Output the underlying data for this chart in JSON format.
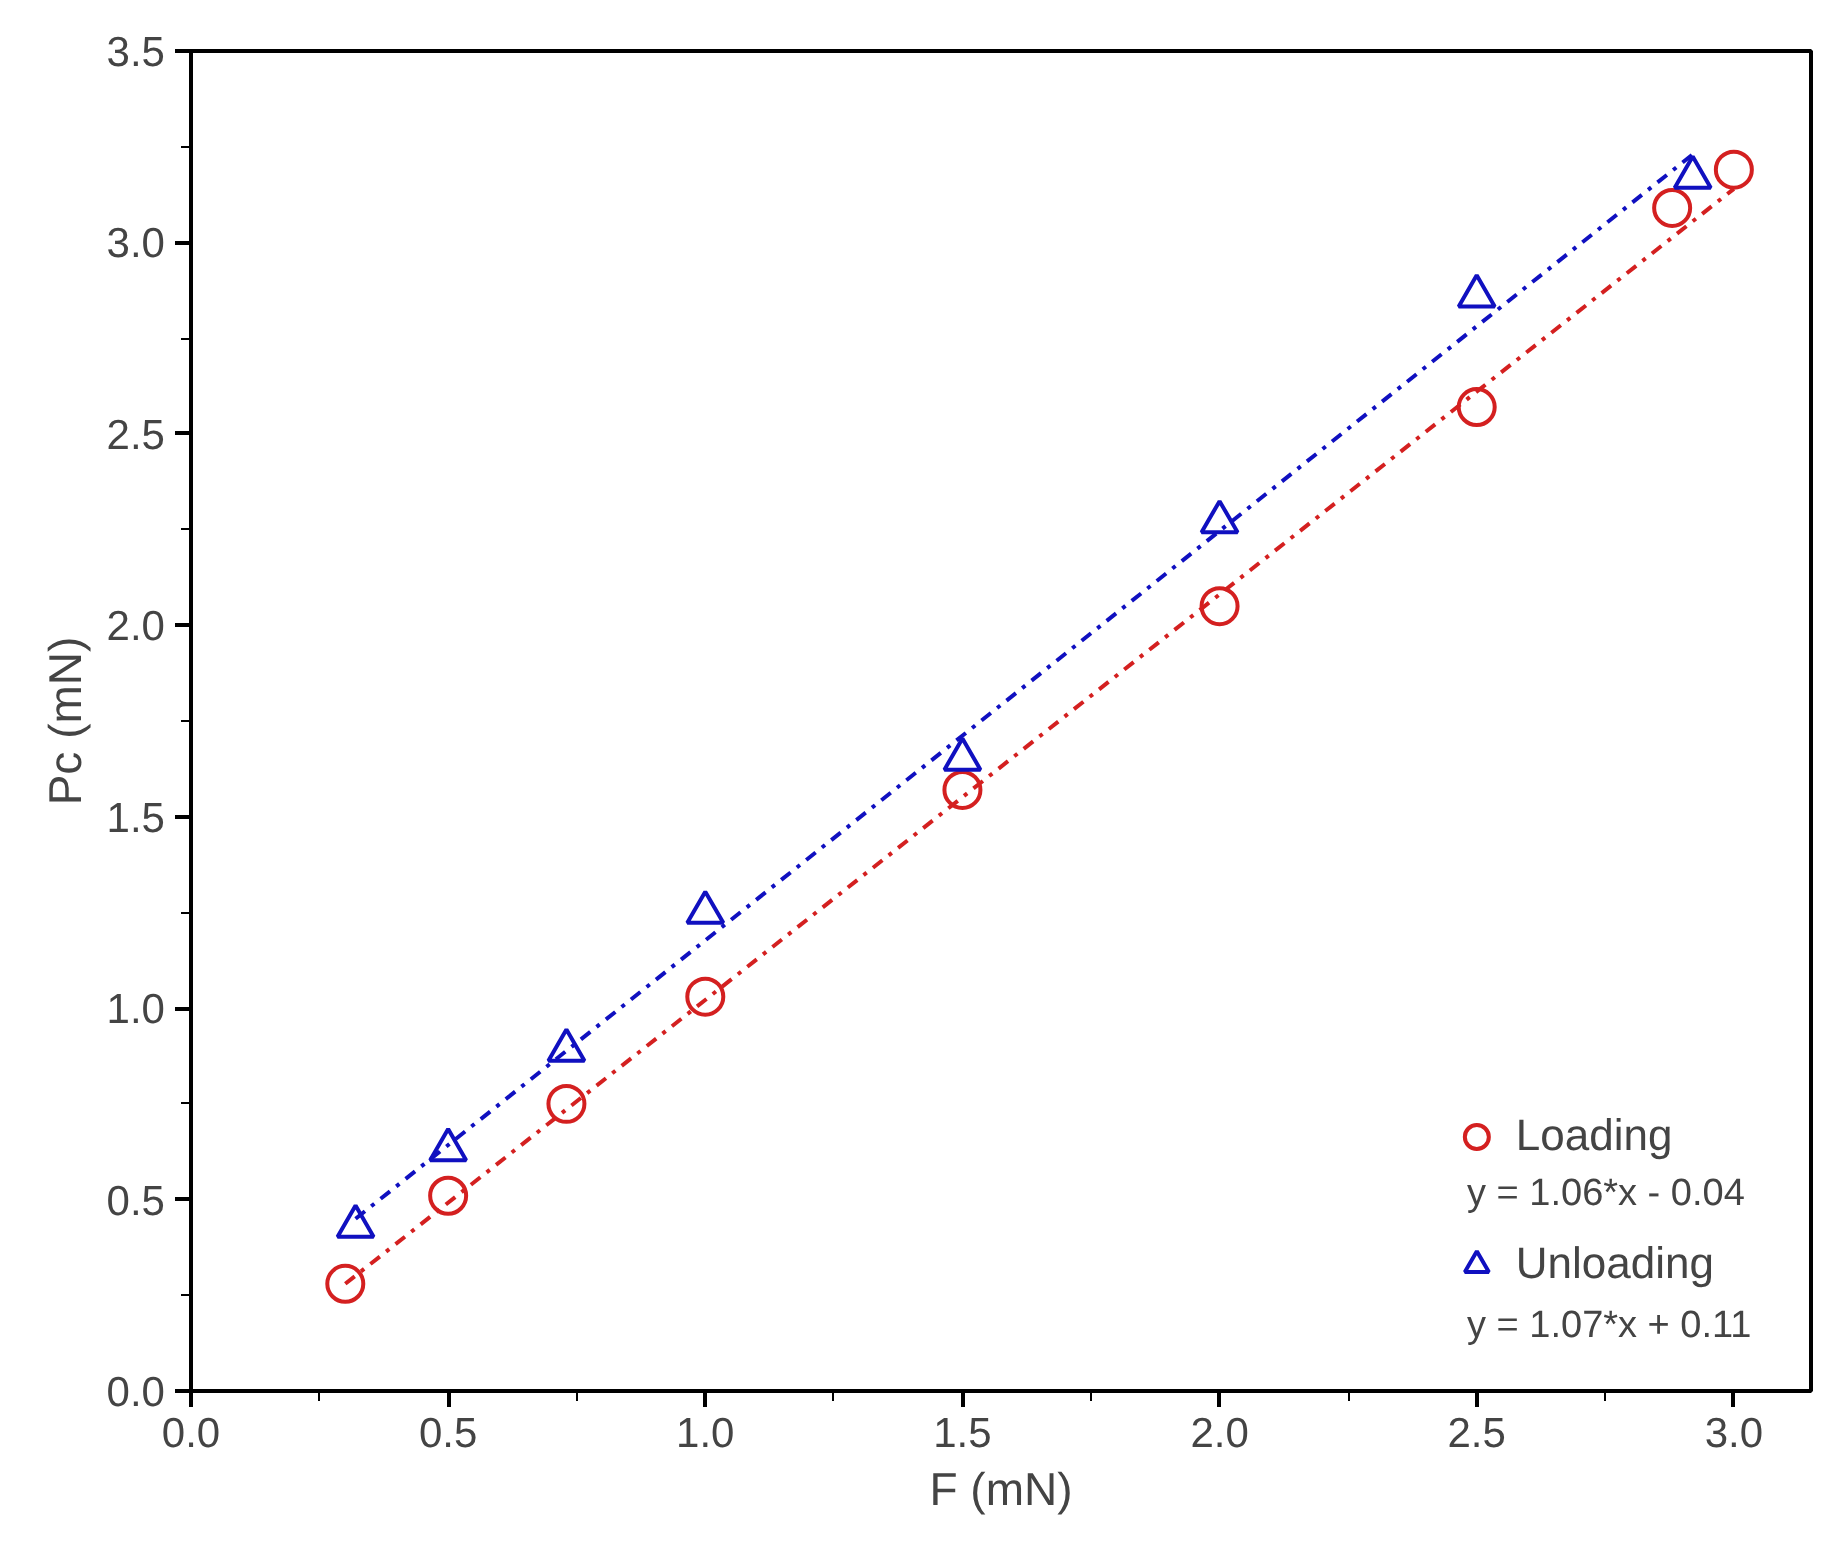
{
  "chart_data": {
    "type": "scatter",
    "xlabel": "F (mN)",
    "ylabel": "Pc (mN)",
    "xlim": [
      0,
      3.15
    ],
    "ylim": [
      0,
      3.5
    ],
    "xticks": [
      {
        "value": 0,
        "label": "0.0"
      },
      {
        "value": 0.5,
        "label": "0.5"
      },
      {
        "value": 1,
        "label": "1.0"
      },
      {
        "value": 1.5,
        "label": "1.5"
      },
      {
        "value": 2,
        "label": "2.0"
      },
      {
        "value": 2.5,
        "label": "2.5"
      },
      {
        "value": 3,
        "label": "3.0"
      }
    ],
    "yticks": [
      {
        "value": 0,
        "label": "0.0"
      },
      {
        "value": 0.5,
        "label": "0.5"
      },
      {
        "value": 1,
        "label": "1.0"
      },
      {
        "value": 1.5,
        "label": "1.5"
      },
      {
        "value": 2,
        "label": "2.0"
      },
      {
        "value": 2.5,
        "label": "2.5"
      },
      {
        "value": 3,
        "label": "3.0"
      },
      {
        "value": 3.5,
        "label": "3.5"
      }
    ],
    "grid": false,
    "legend": "bottom right",
    "series": [
      {
        "type": "line",
        "line_style": "dashdot",
        "color": "#d42020",
        "x": [
          0.3,
          3.0
        ],
        "values": [
          0.28,
          3.14
        ]
      },
      {
        "type": "line",
        "line_style": "dashdot",
        "color": "#1010c0",
        "x": [
          0.32,
          2.92
        ],
        "values": [
          0.45,
          3.23
        ]
      },
      {
        "name": "Loading",
        "marker": "circle",
        "color": "#d42020",
        "x": [
          0.3,
          0.5,
          0.73,
          1.0,
          1.5,
          2.0,
          2.5,
          2.88,
          3.0
        ],
        "values": [
          0.28,
          0.51,
          0.75,
          1.03,
          1.57,
          2.05,
          2.57,
          3.09,
          3.19
        ]
      },
      {
        "name": "Unloading",
        "marker": "triangle",
        "color": "#1010c0",
        "x": [
          0.32,
          0.5,
          0.73,
          1.0,
          1.5,
          2.0,
          2.5,
          2.92
        ],
        "values": [
          0.43,
          0.63,
          0.89,
          1.25,
          1.65,
          2.27,
          2.86,
          3.17
        ]
      }
    ],
    "annotations": [
      "y = 1.06*x - 0.04",
      "y = 1.07*x + 0.11"
    ]
  }
}
